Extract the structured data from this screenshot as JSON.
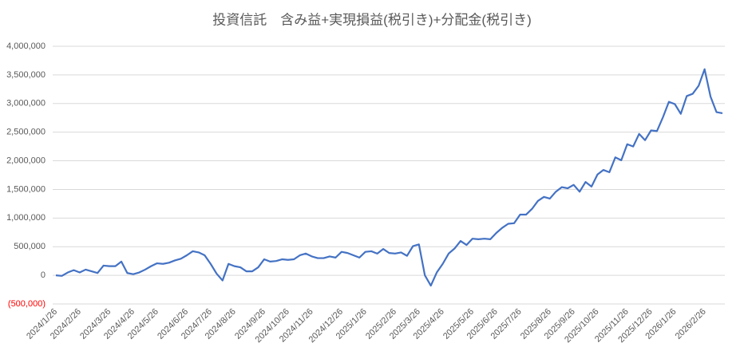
{
  "chart_data": {
    "type": "line",
    "title": "投資信託　含み益+実現損益(税引き)+分配金(税引き)",
    "categories": [
      "2024/1/26",
      null,
      null,
      null,
      "2024/2/26",
      null,
      null,
      null,
      null,
      "2024/3/26",
      null,
      null,
      null,
      "2024/4/26",
      null,
      null,
      null,
      "2024/5/26",
      null,
      null,
      null,
      null,
      "2024/6/26",
      null,
      null,
      null,
      "2024/7/26",
      null,
      null,
      null,
      "2024/8/26",
      null,
      null,
      null,
      null,
      "2024/9/26",
      null,
      null,
      null,
      "2024/10/26",
      null,
      null,
      null,
      "2024/11/26",
      null,
      null,
      null,
      null,
      "2024/12/26",
      null,
      null,
      null,
      "2025/1/26",
      null,
      null,
      null,
      null,
      "2025/2/26",
      null,
      null,
      null,
      "2025/3/26",
      null,
      null,
      null,
      "2025/4/26",
      null,
      null,
      null,
      null,
      "2025/5/26",
      null,
      null,
      null,
      "2025/6/26",
      null,
      null,
      null,
      "2025/7/26",
      null,
      null,
      null,
      null,
      "2025/8/26",
      null,
      null,
      null,
      "2025/9/26",
      null,
      null,
      null,
      "2025/10/26",
      null,
      null,
      null,
      null,
      "2025/11/26",
      null,
      null,
      null,
      "2025/12/26",
      null,
      null,
      null,
      "2026/1/26",
      null,
      null,
      null,
      null,
      "2026/2/26",
      null,
      null,
      null
    ],
    "series": [
      {
        "color": "#4472c4",
        "values": [
          0,
          -10000,
          50000,
          90000,
          50000,
          100000,
          70000,
          40000,
          170000,
          160000,
          160000,
          240000,
          40000,
          20000,
          50000,
          100000,
          160000,
          210000,
          200000,
          220000,
          260000,
          290000,
          350000,
          420000,
          400000,
          350000,
          200000,
          30000,
          -90000,
          200000,
          160000,
          140000,
          70000,
          70000,
          140000,
          280000,
          240000,
          250000,
          280000,
          270000,
          280000,
          350000,
          380000,
          330000,
          300000,
          300000,
          330000,
          310000,
          410000,
          390000,
          350000,
          310000,
          410000,
          420000,
          380000,
          460000,
          390000,
          380000,
          400000,
          340000,
          510000,
          540000,
          0,
          -180000,
          50000,
          200000,
          380000,
          470000,
          600000,
          530000,
          640000,
          630000,
          640000,
          630000,
          740000,
          830000,
          900000,
          910000,
          1060000,
          1060000,
          1160000,
          1300000,
          1370000,
          1340000,
          1460000,
          1540000,
          1520000,
          1580000,
          1460000,
          1630000,
          1550000,
          1760000,
          1840000,
          1800000,
          2060000,
          2010000,
          2290000,
          2250000,
          2470000,
          2360000,
          2530000,
          2520000,
          2760000,
          3030000,
          2990000,
          2820000,
          3130000,
          3170000,
          3310000,
          3600000,
          3120000,
          2850000,
          2830000
        ]
      }
    ],
    "ylim": [
      -500000,
      4000000
    ],
    "yticks": [
      {
        "value": -500000,
        "label": "(500,000)"
      },
      0,
      {
        "value": 500000,
        "label": "500,000"
      },
      {
        "value": 1000000,
        "label": "1,000,000"
      },
      {
        "value": 1500000,
        "label": "1,500,000"
      },
      {
        "value": 2000000,
        "label": "2,000,000"
      },
      {
        "value": 2500000,
        "label": "2,500,000"
      },
      {
        "value": 3000000,
        "label": "3,000,000"
      },
      {
        "value": 3500000,
        "label": "3,500,000"
      },
      {
        "value": 4000000,
        "label": "4,000,000"
      }
    ],
    "grid": true
  }
}
